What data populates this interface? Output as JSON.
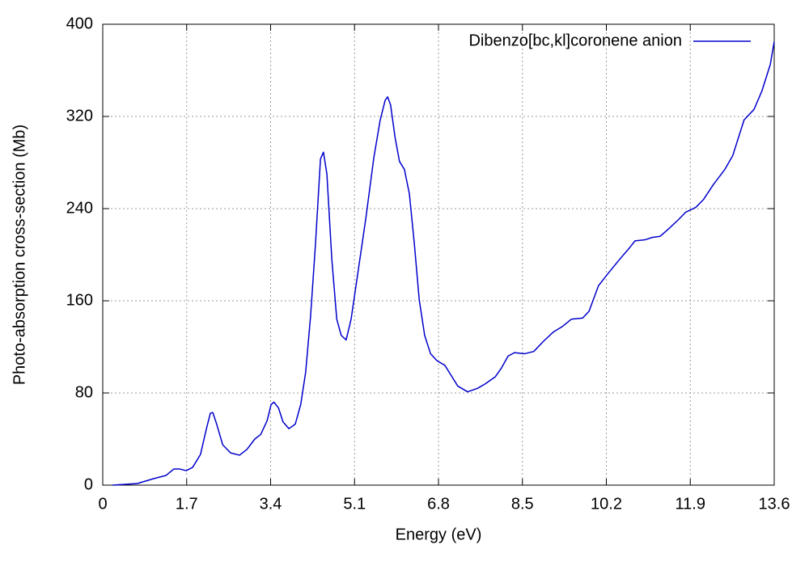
{
  "chart_data": {
    "type": "line",
    "x_label": "Energy (eV)",
    "y_label": "Photo-absorption cross-section (Mb)",
    "xlim": [
      0,
      13.6
    ],
    "ylim": [
      0,
      400
    ],
    "xticks": [
      0,
      1.7,
      3.4,
      5.1,
      6.8,
      8.5,
      10.2,
      11.9,
      13.6
    ],
    "yticks": [
      0,
      80,
      160,
      240,
      320,
      400
    ],
    "grid": true,
    "legend": "upper right",
    "series": [
      {
        "name": "Dibenzo[bc,kl]coronene anion",
        "color": "#0000cc",
        "x": [
          0.2,
          0.7,
          1.03,
          1.28,
          1.44,
          1.56,
          1.69,
          1.82,
          1.98,
          2.1,
          2.18,
          2.23,
          2.31,
          2.43,
          2.59,
          2.77,
          2.92,
          3.08,
          3.2,
          3.33,
          3.41,
          3.47,
          3.56,
          3.65,
          3.77,
          3.9,
          4.01,
          4.11,
          4.21,
          4.31,
          4.41,
          4.47,
          4.54,
          4.64,
          4.74,
          4.83,
          4.93,
          5.03,
          5.16,
          5.33,
          5.49,
          5.62,
          5.72,
          5.77,
          5.83,
          5.92,
          6.01,
          6.11,
          6.21,
          6.31,
          6.41,
          6.52,
          6.64,
          6.77,
          6.93,
          7.06,
          7.19,
          7.39,
          7.59,
          7.75,
          7.95,
          8.08,
          8.21,
          8.34,
          8.54,
          8.73,
          8.93,
          9.13,
          9.32,
          9.49,
          9.72,
          9.85,
          10.04,
          10.24,
          10.47,
          10.67,
          10.78,
          10.99,
          11.13,
          11.29,
          11.45,
          11.65,
          11.81,
          12.01,
          12.17,
          12.37,
          12.6,
          12.76,
          12.99,
          13.19,
          13.35,
          13.52,
          13.6
        ],
        "values": [
          0,
          1.4,
          5.6,
          8.4,
          14,
          14,
          12.6,
          15.4,
          26.7,
          49,
          62.5,
          63,
          52.6,
          35,
          28,
          26,
          31,
          40,
          44,
          56,
          70,
          72,
          67,
          55,
          49,
          53,
          70,
          98,
          147,
          210,
          283,
          289,
          270,
          196,
          144,
          130,
          126,
          144,
          182,
          232,
          284,
          317,
          334,
          337,
          330,
          302,
          281,
          274,
          253,
          210,
          161,
          130,
          114,
          108,
          104,
          95,
          86,
          81,
          84,
          88,
          94,
          102,
          112,
          115,
          114,
          116,
          125,
          133,
          138,
          144,
          145,
          151,
          173,
          184,
          196,
          206,
          212,
          213,
          215,
          216,
          222,
          230,
          237,
          241,
          248,
          261,
          274,
          286,
          317,
          326,
          342,
          365,
          385
        ]
      }
    ]
  }
}
